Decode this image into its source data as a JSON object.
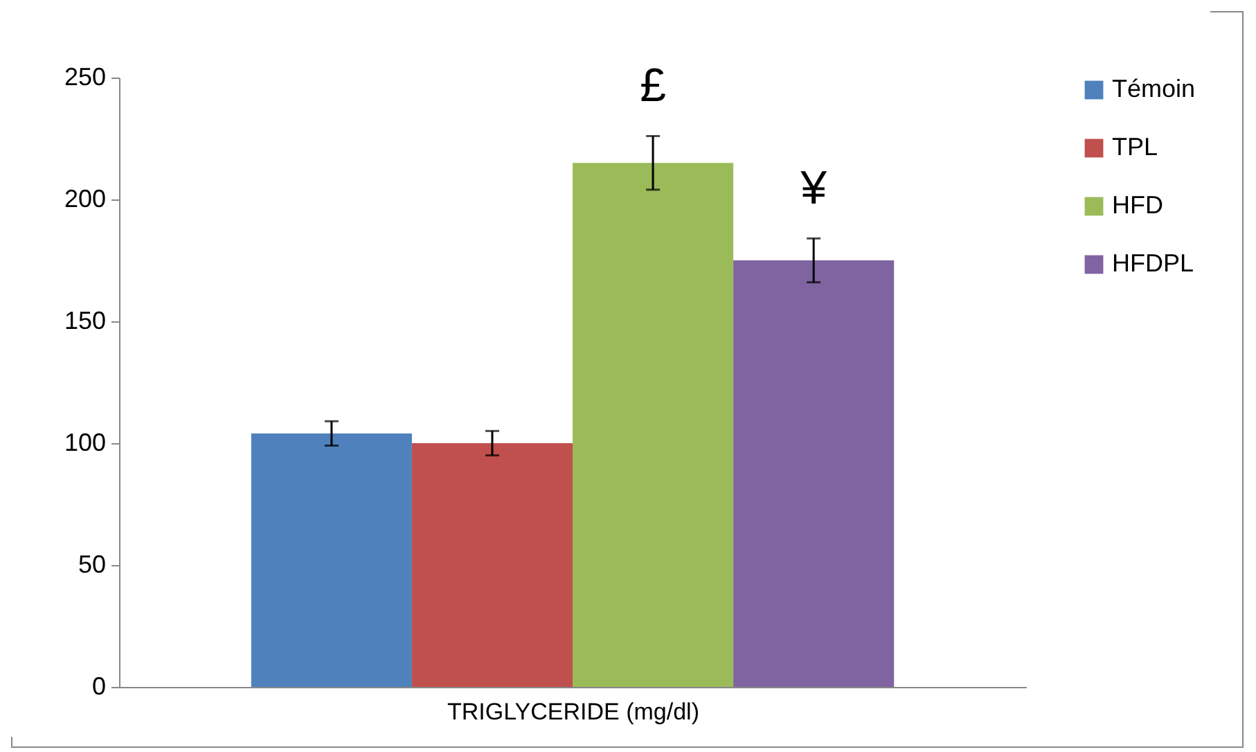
{
  "chart_data": {
    "type": "bar",
    "xlabel": "TRIGLYCERIDE (mg/dl)",
    "categories": [
      null
    ],
    "series": [
      {
        "name": "Témoin",
        "color": "#4f81bd",
        "values": [
          104
        ],
        "errors": [
          5
        ]
      },
      {
        "name": "TPL",
        "color": "#c0504d",
        "values": [
          100
        ],
        "errors": [
          5
        ]
      },
      {
        "name": "HFD",
        "color": "#9bbb59",
        "values": [
          215
        ],
        "errors": [
          11
        ]
      },
      {
        "name": "HFDPL",
        "color": "#8064a2",
        "values": [
          175
        ],
        "errors": [
          9
        ]
      }
    ],
    "annotations": [
      "£",
      "¥"
    ],
    "ylim": [
      0,
      250
    ],
    "yticks": [
      0,
      50,
      100,
      150,
      200,
      250
    ],
    "grid": false,
    "legend": "right"
  }
}
